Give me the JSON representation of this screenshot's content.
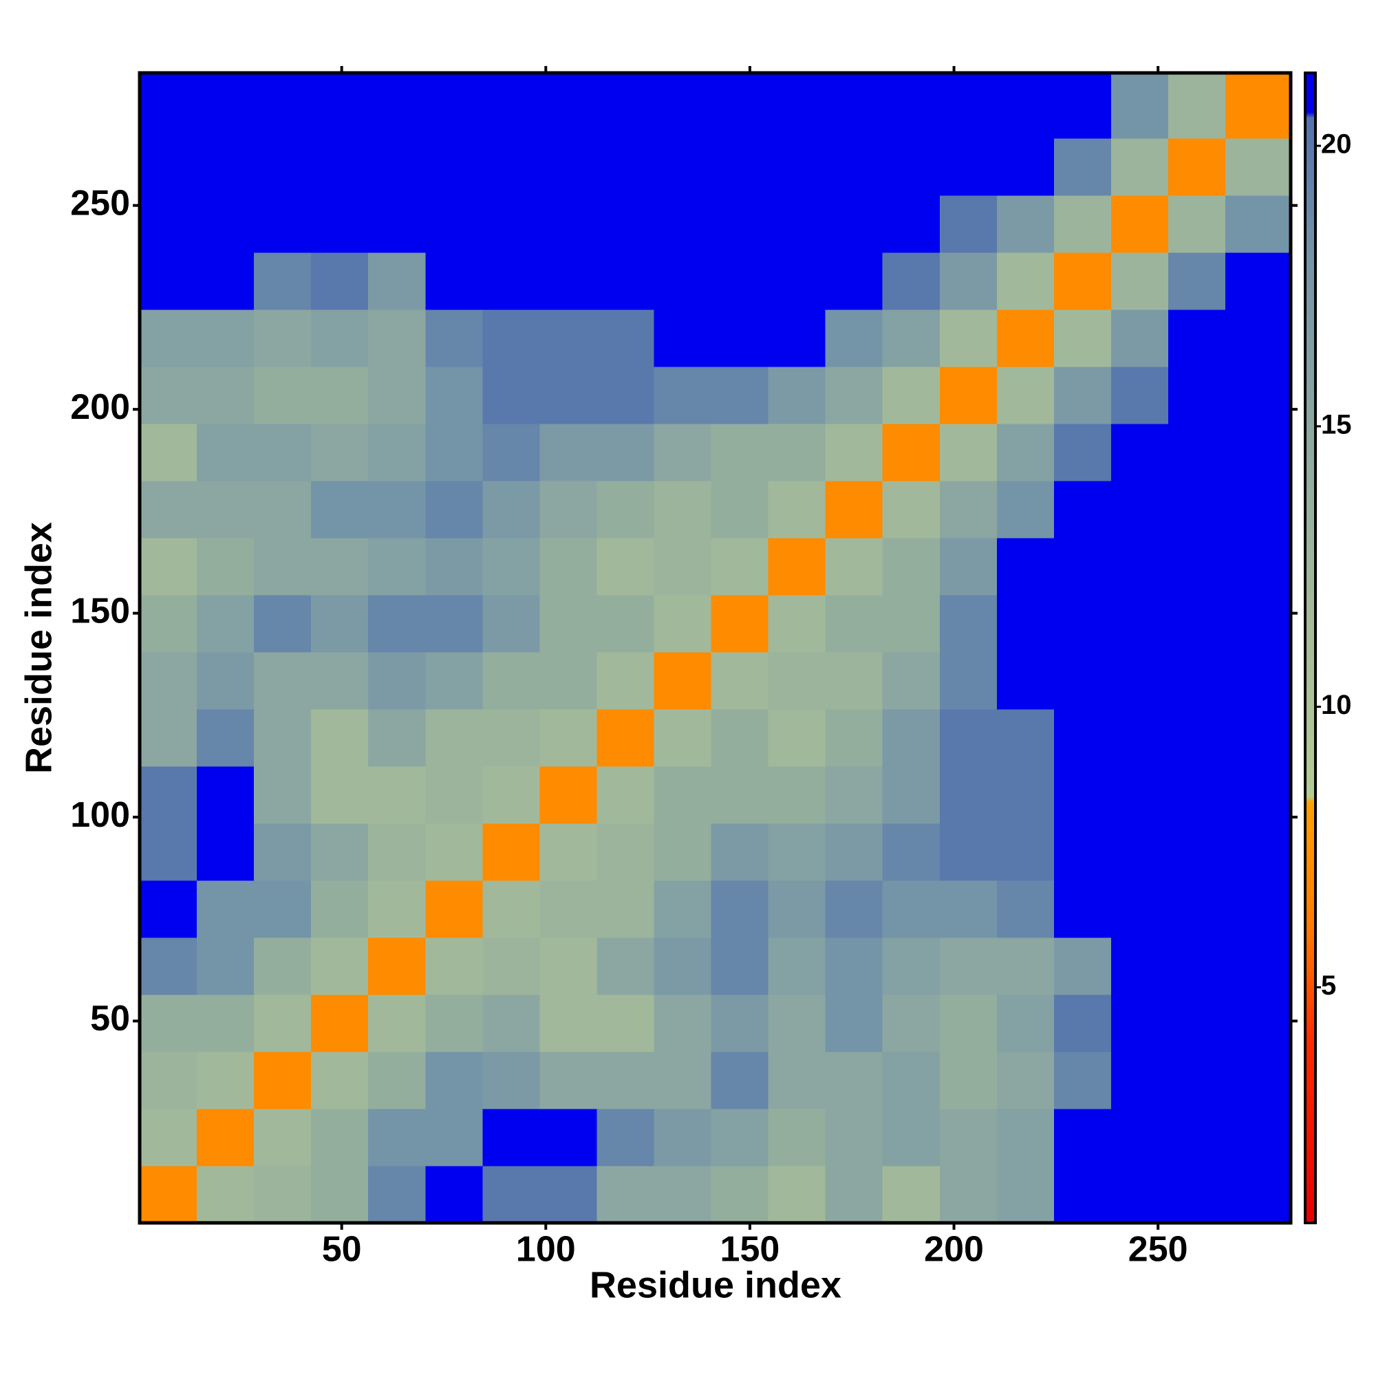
{
  "chart_data": {
    "type": "heatmap",
    "x_label": "Residue index",
    "y_label": "Residue index",
    "xlim": [
      0.5,
      282.5
    ],
    "ylim": [
      0.5,
      282.5
    ],
    "xticks": [
      50,
      100,
      150,
      200,
      250
    ],
    "yticks": [
      50,
      100,
      150,
      200,
      250
    ],
    "x_bins": [
      0.5,
      14.5,
      28.5,
      42.5,
      56.5,
      70.5,
      84.5,
      98.5,
      112.5,
      126.5,
      140.5,
      154.5,
      168.5,
      182.5,
      196.5,
      210.5,
      224.5,
      238.5,
      252.5,
      266.5,
      282.5
    ],
    "y_bins": [
      0.5,
      14.5,
      28.5,
      42.5,
      56.5,
      70.5,
      84.5,
      98.5,
      112.5,
      126.5,
      140.5,
      154.5,
      168.5,
      182.5,
      196.5,
      210.5,
      224.5,
      238.5,
      252.5,
      266.5,
      282.5
    ],
    "clim": [
      0.8,
      21.3
    ],
    "cticks": [
      5,
      10,
      15,
      20
    ],
    "colorscale": [
      [
        0.8,
        "#e80000"
      ],
      [
        4,
        "#ff2a00"
      ],
      [
        6,
        "#ff7a00"
      ],
      [
        8.3,
        "#ffa200"
      ],
      [
        8.4,
        "#b4cc92"
      ],
      [
        13,
        "#9cb49c"
      ],
      [
        18,
        "#7494a8"
      ],
      [
        20.5,
        "#5272ae"
      ],
      [
        20.6,
        "#0000f0"
      ],
      [
        21.3,
        "#0000f0"
      ]
    ],
    "z": [
      [
        7,
        12,
        13,
        14,
        19,
        21,
        20,
        20,
        15,
        15,
        14,
        12,
        15,
        12,
        15,
        16,
        21,
        21,
        21,
        21
      ],
      [
        12,
        7,
        12,
        14,
        18,
        18,
        21,
        21,
        19,
        17,
        16,
        14,
        15,
        16,
        15,
        16,
        21,
        21,
        21,
        21
      ],
      [
        13,
        12,
        7,
        12,
        14,
        18,
        17,
        15,
        15,
        15,
        19,
        15,
        15,
        16,
        14,
        15,
        19,
        21,
        21,
        21
      ],
      [
        14,
        14,
        12,
        7,
        12,
        14,
        15,
        12,
        12,
        15,
        17,
        15,
        18,
        15,
        14,
        16,
        20,
        21,
        21,
        21
      ],
      [
        19,
        18,
        14,
        12,
        7,
        12,
        13,
        12,
        15,
        17,
        19,
        16,
        18,
        16,
        15,
        15,
        17,
        21,
        21,
        21
      ],
      [
        21,
        18,
        18,
        14,
        12,
        7,
        12,
        13,
        13,
        16,
        19,
        17,
        19,
        18,
        18,
        19,
        21,
        21,
        21,
        21
      ],
      [
        20,
        21,
        17,
        15,
        13,
        12,
        7,
        12,
        13,
        14,
        17,
        16,
        17,
        19,
        20,
        20,
        21,
        21,
        21,
        21
      ],
      [
        20,
        21,
        15,
        12,
        12,
        13,
        12,
        7,
        12,
        14,
        14,
        14,
        15,
        17,
        20,
        20,
        21,
        21,
        21,
        21
      ],
      [
        15,
        19,
        15,
        12,
        15,
        13,
        13,
        12,
        7,
        12,
        14,
        12,
        14,
        17,
        20,
        20,
        21,
        21,
        21,
        21
      ],
      [
        15,
        17,
        15,
        15,
        17,
        16,
        14,
        14,
        12,
        7,
        12,
        13,
        13,
        15,
        19,
        21,
        21,
        21,
        21,
        21
      ],
      [
        14,
        16,
        19,
        17,
        19,
        19,
        17,
        14,
        14,
        12,
        7,
        12,
        14,
        14,
        19,
        21,
        21,
        21,
        21,
        21
      ],
      [
        12,
        14,
        15,
        15,
        16,
        17,
        16,
        14,
        12,
        13,
        12,
        7,
        12,
        14,
        17,
        21,
        21,
        21,
        21,
        21
      ],
      [
        15,
        15,
        15,
        18,
        18,
        19,
        17,
        15,
        14,
        13,
        14,
        12,
        7,
        12,
        15,
        18,
        21,
        21,
        21,
        21
      ],
      [
        12,
        16,
        16,
        15,
        16,
        18,
        19,
        17,
        17,
        15,
        14,
        14,
        12,
        7,
        12,
        16,
        20,
        21,
        21,
        21
      ],
      [
        15,
        15,
        14,
        14,
        15,
        18,
        20,
        20,
        20,
        19,
        19,
        17,
        15,
        12,
        7,
        12,
        17,
        20,
        21,
        21
      ],
      [
        16,
        16,
        15,
        16,
        15,
        19,
        20,
        20,
        20,
        21,
        21,
        21,
        18,
        16,
        12,
        7,
        12,
        17,
        21,
        21
      ],
      [
        21,
        21,
        19,
        20,
        17,
        21,
        21,
        21,
        21,
        21,
        21,
        21,
        21,
        20,
        17,
        12,
        7,
        13,
        19,
        21
      ],
      [
        21,
        21,
        21,
        21,
        21,
        21,
        21,
        21,
        21,
        21,
        21,
        21,
        21,
        21,
        20,
        17,
        13,
        7,
        13,
        18
      ],
      [
        21,
        21,
        21,
        21,
        21,
        21,
        21,
        21,
        21,
        21,
        21,
        21,
        21,
        21,
        21,
        21,
        19,
        13,
        7,
        13
      ],
      [
        21,
        21,
        21,
        21,
        21,
        21,
        21,
        21,
        21,
        21,
        21,
        21,
        21,
        21,
        21,
        21,
        21,
        18,
        13,
        7
      ]
    ]
  }
}
